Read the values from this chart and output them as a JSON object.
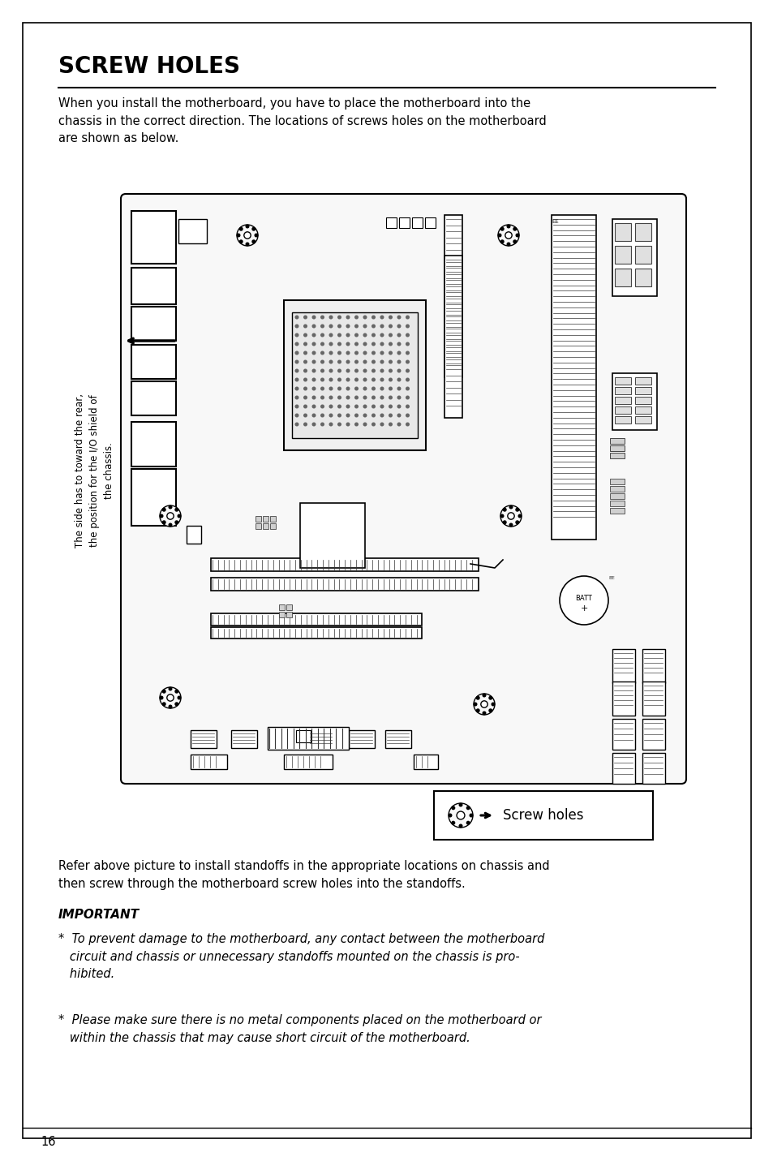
{
  "title": "SCREW HOLES",
  "intro_text": "When you install the motherboard, you have to place the motherboard into the\nchassis in the correct direction. The locations of screws holes on the motherboard\nare shown as below.",
  "rotated_label": "The side has to toward the rear,\nthe position for the I/O shield of\nthe chassis.",
  "legend_text": "Screw holes",
  "refer_text": "Refer above picture to install standoffs in the appropriate locations on chassis and\nthen screw through the motherboard screw holes into the standoffs.",
  "important_title": "IMPORTANT",
  "bullet1": "*  To prevent damage to the motherboard, any contact between the motherboard\n   circuit and chassis or unnecessary standoffs mounted on the chassis is pro-\n   hibited.",
  "bullet2": "*  Please make sure there is no metal components placed on the motherboard or\n   within the chassis that may cause short circuit of the motherboard.",
  "page_number": "16",
  "bg_color": "#ffffff",
  "text_color": "#000000"
}
